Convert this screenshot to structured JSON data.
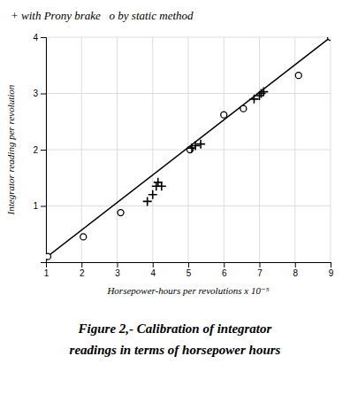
{
  "chart_data": {
    "type": "scatter",
    "title": "Figure 2,- Calibration of integrator",
    "subtitle": "readings in terms of horsepower hours",
    "annotations": [
      "+ with Prony brake   o by static method"
    ],
    "xlabel": "Horsepower-hours per revolutions x 10⁻⁵",
    "ylabel": "Integrator reading per revolution",
    "xlim": [
      1,
      9
    ],
    "ylim": [
      0,
      4
    ],
    "xticks": [
      1,
      2,
      3,
      4,
      5,
      6,
      7,
      8,
      9
    ],
    "yticks": [
      1,
      2,
      3,
      4
    ],
    "grid": true,
    "series": [
      {
        "type": "line",
        "color": "#000000",
        "x": [
          1.0,
          9.0
        ],
        "values": [
          0.08,
          4.0
        ]
      },
      {
        "type": "scatter",
        "marker": "circle",
        "color": "#000000",
        "x": [
          1.05,
          2.05,
          3.1,
          5.05,
          6.0,
          6.55,
          8.1,
          9.0
        ],
        "values": [
          0.1,
          0.45,
          0.88,
          2.0,
          2.62,
          2.73,
          3.32,
          4.0
        ]
      },
      {
        "type": "scatter",
        "marker": "plus",
        "color": "#000000",
        "x": [
          3.85,
          4.0,
          4.1,
          4.15,
          4.25,
          5.1,
          5.2,
          5.35,
          6.85,
          7.0,
          7.05,
          7.12
        ],
        "values": [
          1.08,
          1.2,
          1.35,
          1.42,
          1.35,
          2.03,
          2.07,
          2.1,
          2.9,
          2.96,
          3.0,
          3.03
        ]
      }
    ]
  }
}
